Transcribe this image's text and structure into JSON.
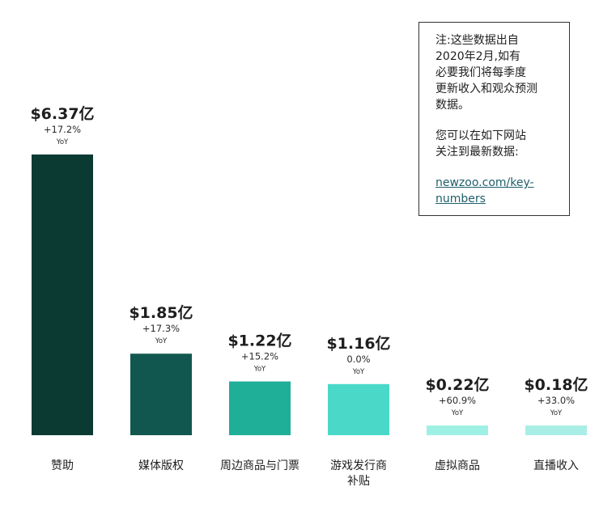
{
  "chart_data": {
    "type": "bar",
    "categories": [
      "赞助",
      "媒体版权",
      "周边商品与门票",
      "游戏发行商补贴",
      "虚拟商品",
      "直播收入"
    ],
    "category_lines": [
      [
        "赞助"
      ],
      [
        "媒体版权"
      ],
      [
        "周边商品与门票"
      ],
      [
        "游戏发行商",
        "补贴"
      ],
      [
        "虚拟商品"
      ],
      [
        "直播收入"
      ]
    ],
    "values": [
      6.37,
      1.85,
      1.22,
      1.16,
      0.22,
      0.18
    ],
    "value_labels": [
      "$6.37亿",
      "$1.85亿",
      "$1.22亿",
      "$1.16亿",
      "$0.22亿",
      "$0.18亿"
    ],
    "change_labels": [
      "+17.2%",
      "+17.3%",
      "+15.2%",
      "0.0%",
      "+60.9%",
      "+33.0%"
    ],
    "yoy_label": "YoY",
    "bar_colors": [
      "#0b3a33",
      "#12574f",
      "#1fae98",
      "#4ad9c8",
      "#9ef0e4",
      "#a8eee6"
    ],
    "title": "",
    "xlabel": "",
    "ylabel": "",
    "ylim": [
      0,
      6.37
    ],
    "grid": false,
    "legend": false
  },
  "note": {
    "lines": [
      "注:这些数据出自",
      "2020年2月,如有",
      "必要我们将每季度",
      "更新收入和观众预测",
      "数据。"
    ],
    "lines2": [
      "您可以在如下网站",
      "关注到最新数据:"
    ],
    "link_lines": [
      "newzoo.com/key-",
      "numbers"
    ]
  }
}
